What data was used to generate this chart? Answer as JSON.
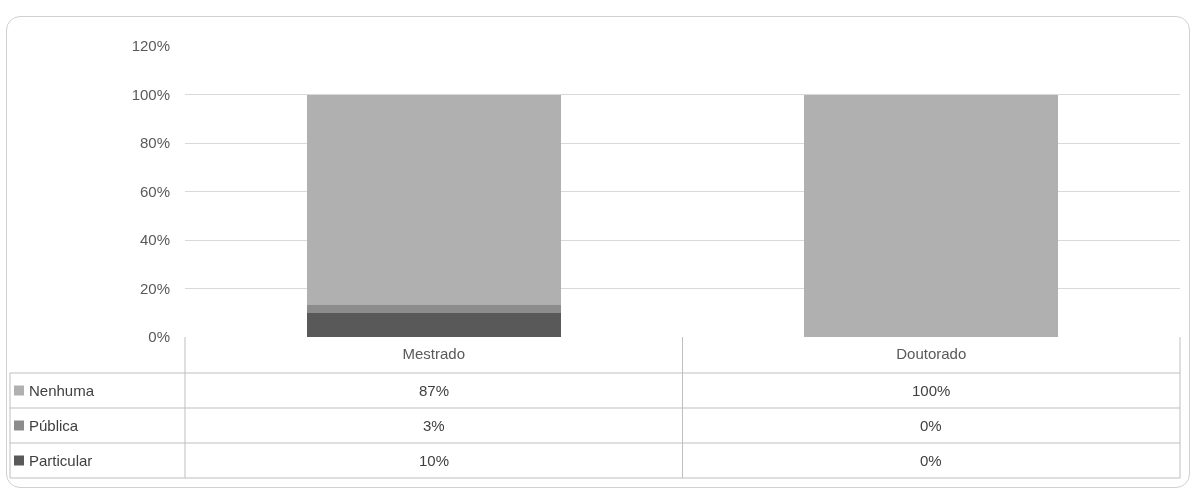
{
  "chart_data": {
    "type": "bar",
    "stacked": true,
    "categories": [
      "Mestrado",
      "Doutorado"
    ],
    "series": [
      {
        "name": "Particular",
        "color": "#595959",
        "values": [
          10,
          0
        ],
        "value_labels": [
          "10%",
          "0%"
        ]
      },
      {
        "name": "Pública",
        "color": "#8c8c8c",
        "values": [
          3,
          0
        ],
        "value_labels": [
          "3%",
          "0%"
        ]
      },
      {
        "name": "Nenhuma",
        "color": "#b0b0b0",
        "values": [
          87,
          100
        ],
        "value_labels": [
          "87%",
          "100%"
        ]
      }
    ],
    "ylim": [
      0,
      120
    ],
    "yticks": [
      {
        "value": 0,
        "label": "0%"
      },
      {
        "value": 20,
        "label": "20%"
      },
      {
        "value": 40,
        "label": "40%"
      },
      {
        "value": 60,
        "label": "60%"
      },
      {
        "value": 80,
        "label": "80%"
      },
      {
        "value": 100,
        "label": "100%"
      },
      {
        "value": 120,
        "label": "120%"
      }
    ],
    "grid": "y",
    "legend": "bottom"
  }
}
